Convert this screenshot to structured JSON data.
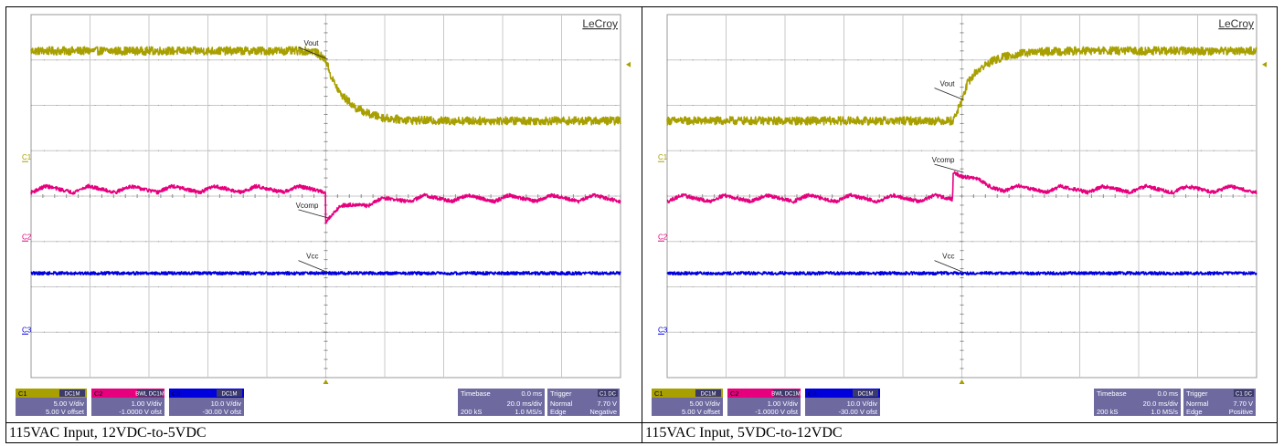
{
  "chart_data": [
    {
      "type": "line",
      "brand": "LeCroy",
      "caption": "115VAC Input, 12VDC-to-5VDC",
      "channel_markers": [
        "C1",
        "C2",
        "C3"
      ],
      "trace_labels": [
        "Vout",
        "Vcomp",
        "Vcc"
      ],
      "grid": true,
      "x_unit": "ms",
      "xlim": [
        -100,
        100
      ],
      "ylim": [
        -4,
        4
      ],
      "series": [
        {
          "name": "Vout",
          "color": "#a8a000",
          "x": [
            -100,
            -4,
            0,
            2,
            5,
            10,
            15,
            20,
            25,
            30,
            40,
            100
          ],
          "y": [
            3.2,
            3.2,
            3.0,
            2.6,
            2.25,
            1.95,
            1.8,
            1.72,
            1.69,
            1.67,
            1.66,
            1.66
          ],
          "noise": 0.09
        },
        {
          "name": "Vcomp",
          "color": "#e6007e",
          "x": [
            -100,
            -0.1,
            0,
            1,
            5,
            10,
            20,
            30,
            100
          ],
          "y": [
            0.15,
            0.15,
            -0.5,
            -0.45,
            -0.28,
            -0.18,
            -0.1,
            -0.05,
            -0.05
          ],
          "noise": 0.04,
          "ripple": 0.14,
          "ripple_count": 14
        },
        {
          "name": "Vcc",
          "color": "#0000dd",
          "x": [
            -100,
            100
          ],
          "y": [
            -1.7,
            -1.7
          ],
          "noise": 0.035
        }
      ],
      "readouts": {
        "ch1": {
          "label": "C1",
          "coupling": "DC1M",
          "vdiv": "5.00 V/div",
          "offset": "5.00 V offset"
        },
        "ch2": {
          "label": "C2",
          "coupling": "BWL DC1M",
          "vdiv": "1.00 V/div",
          "offset": "-1.0000 V ofst"
        },
        "ch3": {
          "label": "C3",
          "coupling": "DC1M",
          "vdiv": "10.0 V/div",
          "offset": "-30.00 V ofst"
        },
        "timebase": {
          "label": "Timebase",
          "delay": "0.0 ms",
          "tdiv": "20.0 ms/div",
          "samples": "200 kS",
          "rate": "1.0 MS/s"
        },
        "trigger": {
          "label": "Trigger",
          "source": "C1 DC",
          "mode": "Normal",
          "level": "7.70 V",
          "type": "Edge",
          "slope": "Negative"
        }
      }
    },
    {
      "type": "line",
      "brand": "LeCroy",
      "caption": "115VAC Input, 5VDC-to-12VDC",
      "channel_markers": [
        "C1",
        "C2",
        "C3"
      ],
      "trace_labels": [
        "Vout",
        "Vcomp",
        "Vcc"
      ],
      "grid": true,
      "x_unit": "ms",
      "xlim": [
        -100,
        100
      ],
      "ylim": [
        -4,
        4
      ],
      "series": [
        {
          "name": "Vout",
          "color": "#a8a000",
          "x": [
            -100,
            -3,
            0,
            2,
            5,
            10,
            15,
            20,
            25,
            30,
            40,
            100
          ],
          "y": [
            1.66,
            1.66,
            2.1,
            2.5,
            2.75,
            2.97,
            3.08,
            3.14,
            3.17,
            3.19,
            3.2,
            3.2
          ],
          "noise": 0.09
        },
        {
          "name": "Vcomp",
          "color": "#e6007e",
          "x": [
            -100,
            -3.1,
            -3,
            0,
            5,
            10,
            20,
            30,
            100
          ],
          "y": [
            -0.05,
            -0.05,
            0.55,
            0.5,
            0.32,
            0.2,
            0.16,
            0.15,
            0.15
          ],
          "noise": 0.04,
          "ripple": 0.14,
          "ripple_count": 14
        },
        {
          "name": "Vcc",
          "color": "#0000dd",
          "x": [
            -100,
            100
          ],
          "y": [
            -1.7,
            -1.7
          ],
          "noise": 0.035
        }
      ],
      "readouts": {
        "ch1": {
          "label": "C1",
          "coupling": "DC1M",
          "vdiv": "5.00 V/div",
          "offset": "5.00 V offset"
        },
        "ch2": {
          "label": "C2",
          "coupling": "BWL DC1M",
          "vdiv": "1.00 V/div",
          "offset": "-1.0000 V ofst"
        },
        "ch3": {
          "label": "C3",
          "coupling": "DC1M",
          "vdiv": "10.0 V/div",
          "offset": "-30.00 V ofst"
        },
        "timebase": {
          "label": "Timebase",
          "delay": "0.0 ms",
          "tdiv": "20.0 ms/div",
          "samples": "200 kS",
          "rate": "1.0 MS/s"
        },
        "trigger": {
          "label": "Trigger",
          "source": "C1 DC",
          "mode": "Normal",
          "level": "7.70 V",
          "type": "Edge",
          "slope": "Positive"
        }
      }
    }
  ],
  "colors": {
    "ch1": "#a8a000",
    "ch2": "#e6007e",
    "ch3": "#0000dd",
    "grid": "#c8c8c8",
    "readout_bg": "#6e6aa0",
    "readout_tag_bg": "#3c3a6a"
  }
}
